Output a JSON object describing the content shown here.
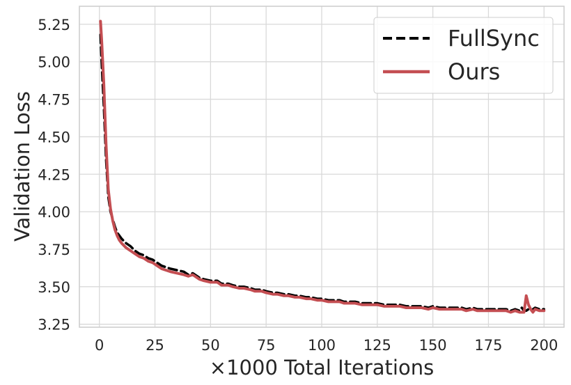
{
  "chart_data": {
    "type": "line",
    "title": "",
    "xlabel": "×1000 Total Iterations",
    "ylabel": "Validation Loss",
    "xlim": [
      -9,
      209
    ],
    "ylim": [
      3.23,
      5.37
    ],
    "xticks": [
      0,
      25,
      50,
      75,
      100,
      125,
      150,
      175,
      200
    ],
    "yticks": [
      3.25,
      3.5,
      3.75,
      4.0,
      4.25,
      4.5,
      4.75,
      5.0,
      5.25
    ],
    "xtick_labels": [
      "0",
      "25",
      "50",
      "75",
      "100",
      "125",
      "150",
      "175",
      "200"
    ],
    "ytick_labels": [
      "3.25",
      "3.50",
      "3.75",
      "4.00",
      "4.25",
      "4.50",
      "4.75",
      "5.00",
      "5.25"
    ],
    "grid": true,
    "legend_position": "top-right",
    "series": [
      {
        "name": "FullSync",
        "color": "#000000",
        "style": "dashed",
        "x": [
          0.5,
          1,
          2,
          3,
          4,
          5,
          6,
          7,
          8,
          9,
          10,
          12,
          14,
          16,
          18,
          20,
          22,
          24,
          26,
          28,
          30,
          32,
          35,
          38,
          40,
          42,
          44,
          45,
          47,
          50,
          53,
          55,
          58,
          60,
          63,
          65,
          68,
          70,
          73,
          75,
          78,
          80,
          83,
          85,
          88,
          90,
          93,
          95,
          98,
          100,
          103,
          105,
          108,
          110,
          113,
          115,
          118,
          120,
          123,
          125,
          128,
          130,
          133,
          135,
          138,
          140,
          143,
          145,
          148,
          150,
          153,
          155,
          158,
          160,
          163,
          165,
          168,
          170,
          173,
          175,
          178,
          180,
          183,
          185,
          187,
          189,
          190,
          191,
          192,
          193,
          194,
          195,
          196,
          198,
          200
        ],
        "y": [
          5.18,
          5.0,
          4.7,
          4.35,
          4.1,
          4.0,
          3.95,
          3.9,
          3.86,
          3.84,
          3.82,
          3.79,
          3.77,
          3.74,
          3.72,
          3.71,
          3.69,
          3.68,
          3.66,
          3.64,
          3.63,
          3.62,
          3.61,
          3.6,
          3.58,
          3.59,
          3.57,
          3.56,
          3.55,
          3.54,
          3.54,
          3.52,
          3.52,
          3.51,
          3.5,
          3.5,
          3.49,
          3.48,
          3.48,
          3.47,
          3.46,
          3.46,
          3.45,
          3.45,
          3.44,
          3.44,
          3.43,
          3.43,
          3.42,
          3.42,
          3.41,
          3.41,
          3.41,
          3.4,
          3.4,
          3.4,
          3.39,
          3.39,
          3.39,
          3.39,
          3.38,
          3.38,
          3.38,
          3.38,
          3.37,
          3.37,
          3.37,
          3.37,
          3.36,
          3.37,
          3.36,
          3.36,
          3.36,
          3.36,
          3.36,
          3.35,
          3.36,
          3.35,
          3.35,
          3.35,
          3.35,
          3.35,
          3.35,
          3.34,
          3.35,
          3.34,
          3.36,
          3.34,
          3.34,
          3.35,
          3.34,
          3.35,
          3.36,
          3.35,
          3.35
        ]
      },
      {
        "name": "Ours",
        "color": "#c44e52",
        "style": "solid",
        "x": [
          0.5,
          1,
          2,
          3,
          4,
          5,
          6,
          7,
          8,
          9,
          10,
          12,
          14,
          16,
          18,
          20,
          22,
          24,
          26,
          28,
          30,
          32,
          35,
          38,
          40,
          42,
          44,
          45,
          47,
          50,
          53,
          55,
          58,
          60,
          63,
          65,
          68,
          70,
          73,
          75,
          78,
          80,
          83,
          85,
          88,
          90,
          93,
          95,
          98,
          100,
          103,
          105,
          108,
          110,
          113,
          115,
          118,
          120,
          123,
          125,
          128,
          130,
          133,
          135,
          138,
          140,
          143,
          145,
          148,
          150,
          153,
          155,
          158,
          160,
          163,
          165,
          168,
          170,
          173,
          175,
          178,
          180,
          183,
          185,
          187,
          189,
          190,
          191,
          192,
          193,
          194,
          195,
          196,
          198,
          200
        ],
        "y": [
          5.27,
          5.15,
          4.85,
          4.45,
          4.15,
          4.02,
          3.94,
          3.88,
          3.84,
          3.81,
          3.79,
          3.76,
          3.74,
          3.72,
          3.7,
          3.69,
          3.67,
          3.66,
          3.64,
          3.62,
          3.61,
          3.6,
          3.59,
          3.58,
          3.57,
          3.58,
          3.56,
          3.55,
          3.54,
          3.53,
          3.53,
          3.51,
          3.51,
          3.5,
          3.49,
          3.49,
          3.48,
          3.47,
          3.47,
          3.46,
          3.45,
          3.45,
          3.44,
          3.44,
          3.43,
          3.43,
          3.42,
          3.42,
          3.41,
          3.41,
          3.4,
          3.4,
          3.4,
          3.39,
          3.39,
          3.39,
          3.38,
          3.38,
          3.38,
          3.38,
          3.37,
          3.37,
          3.37,
          3.37,
          3.36,
          3.36,
          3.36,
          3.36,
          3.35,
          3.36,
          3.35,
          3.35,
          3.35,
          3.35,
          3.35,
          3.34,
          3.35,
          3.34,
          3.34,
          3.34,
          3.34,
          3.34,
          3.34,
          3.33,
          3.34,
          3.33,
          3.33,
          3.33,
          3.44,
          3.38,
          3.35,
          3.33,
          3.35,
          3.34,
          3.34
        ]
      }
    ]
  }
}
